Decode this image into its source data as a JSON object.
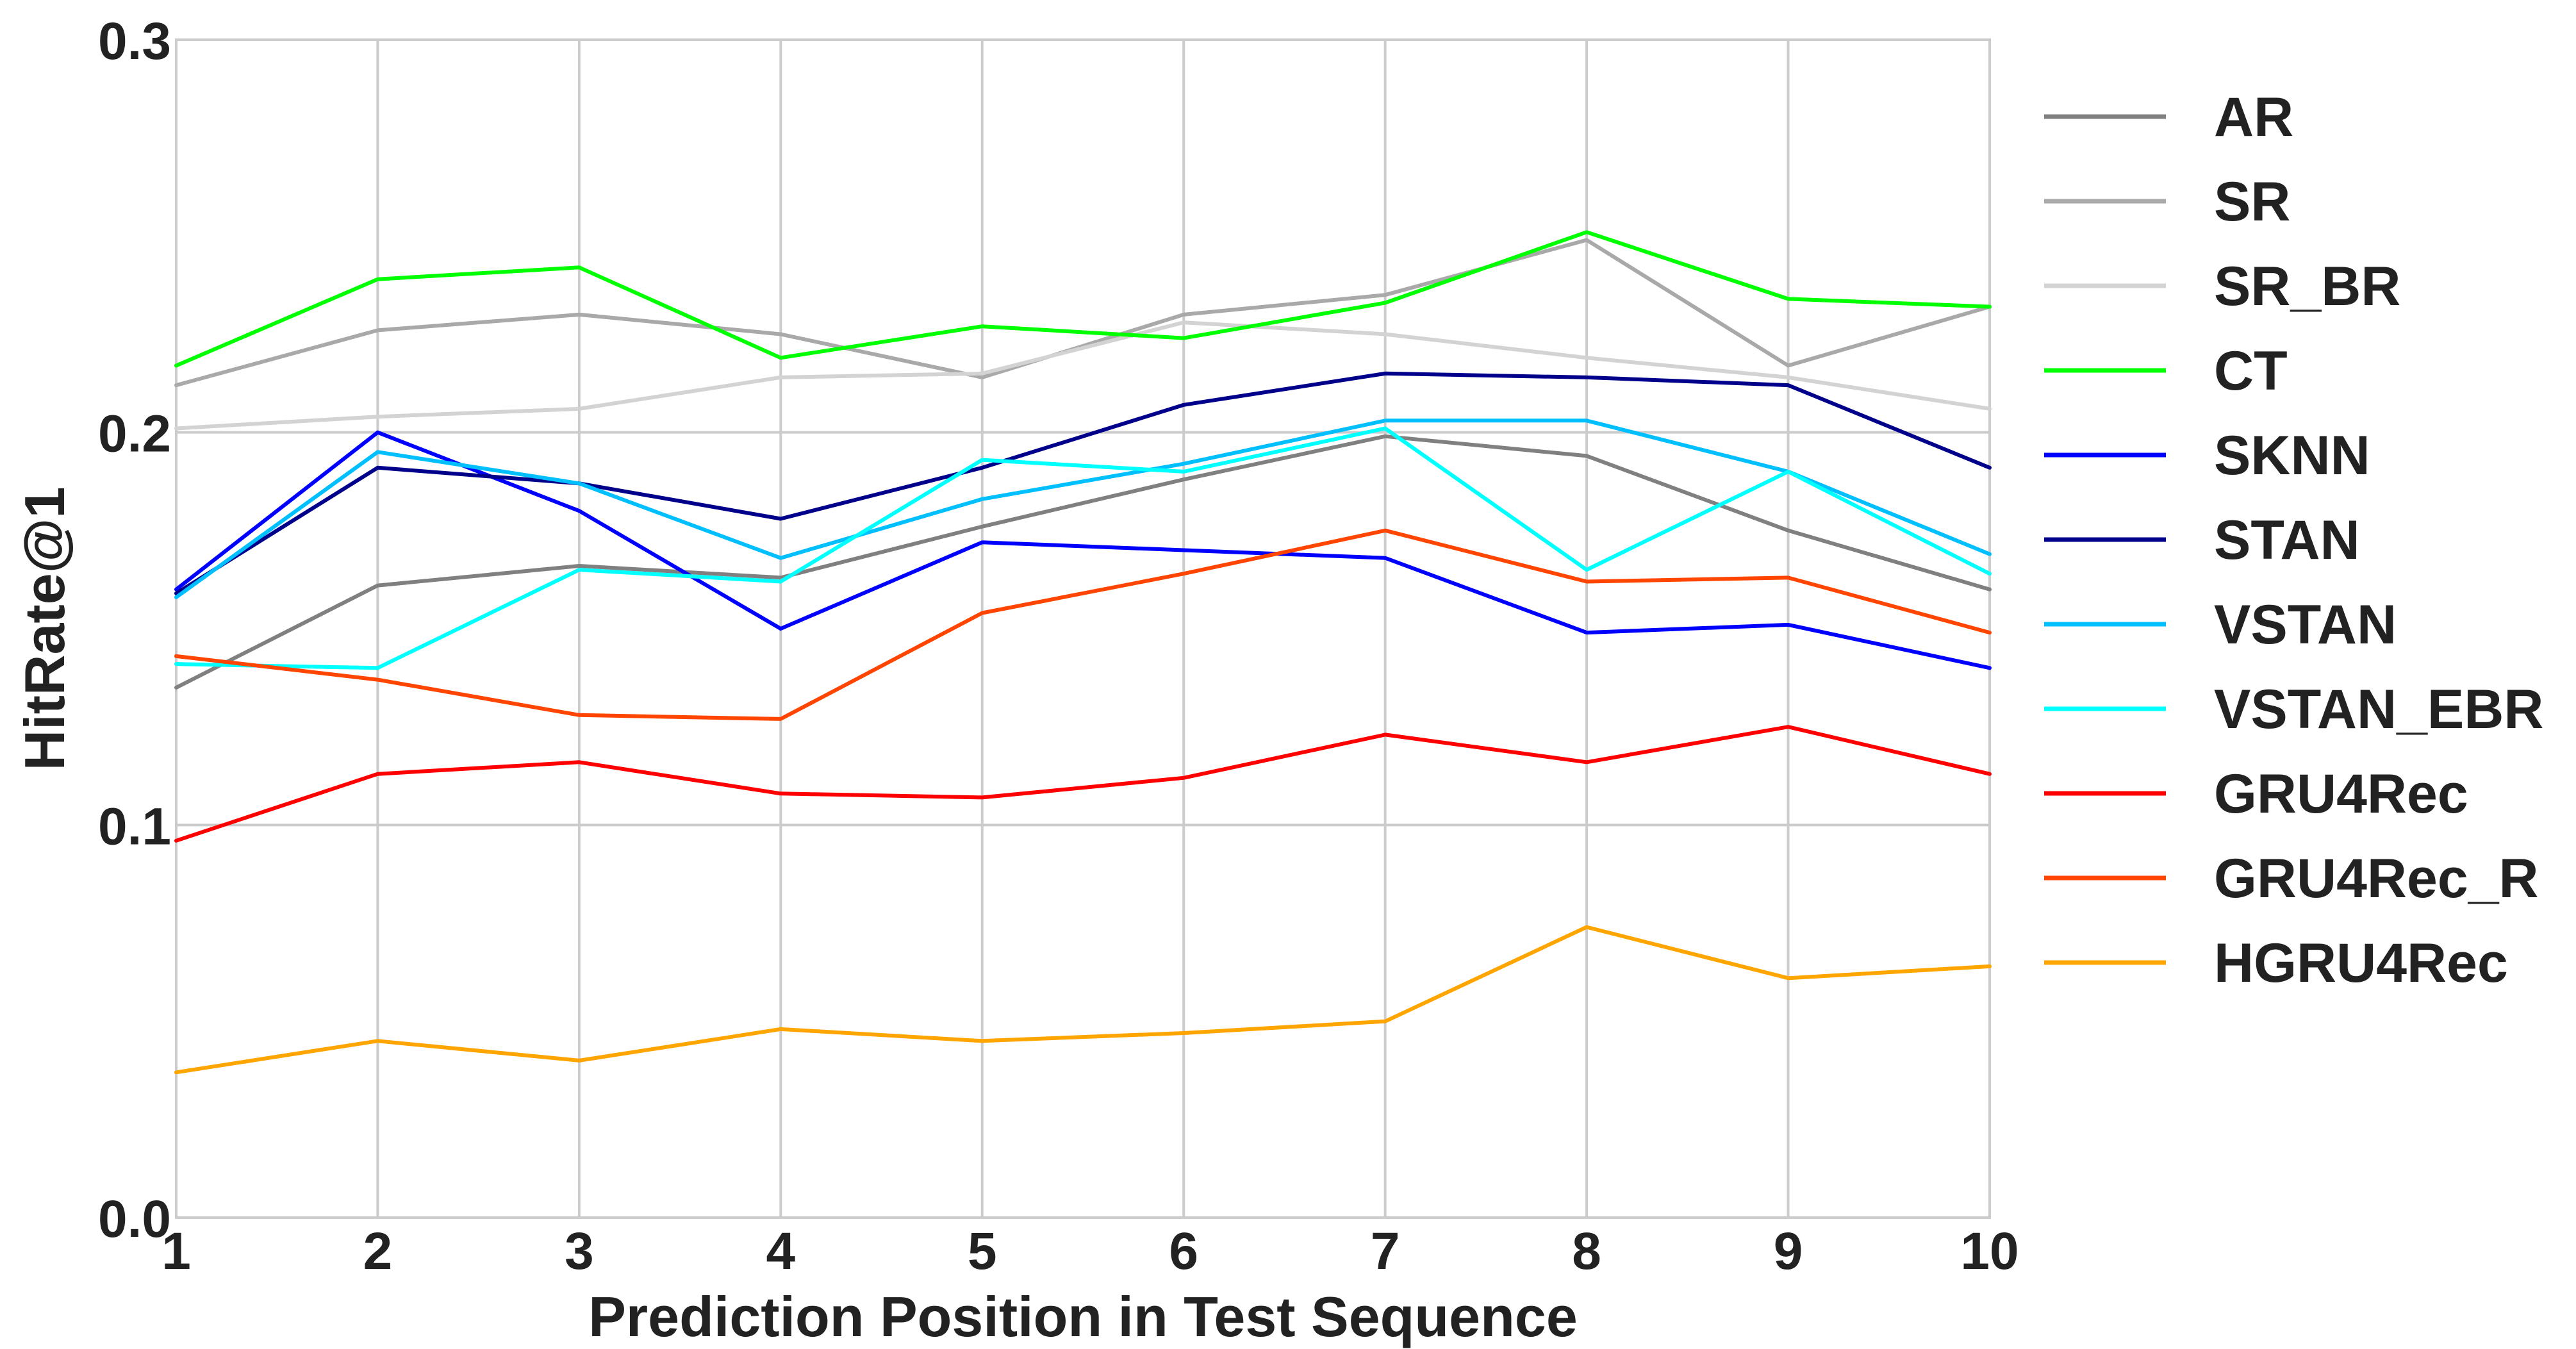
{
  "chart_data": {
    "type": "line",
    "title": "",
    "xlabel": "Prediction Position in Test Sequence",
    "ylabel": "HitRate@1",
    "x": [
      1,
      2,
      3,
      4,
      5,
      6,
      7,
      8,
      9,
      10
    ],
    "xlim": [
      1,
      10
    ],
    "ylim": [
      0.0,
      0.3
    ],
    "xticks": [
      "1",
      "2",
      "3",
      "4",
      "5",
      "6",
      "7",
      "8",
      "9",
      "10"
    ],
    "yticks": [
      "0.0",
      "0.1",
      "0.2",
      "0.3"
    ],
    "grid": true,
    "legend_position": "right",
    "series": [
      {
        "name": "AR",
        "color": "#808080",
        "values": [
          0.135,
          0.161,
          0.166,
          0.163,
          0.176,
          0.188,
          0.199,
          0.194,
          0.175,
          0.16
        ]
      },
      {
        "name": "SR",
        "color": "#a9a9a9",
        "values": [
          0.212,
          0.226,
          0.23,
          0.225,
          0.214,
          0.23,
          0.235,
          0.249,
          0.217,
          0.232
        ]
      },
      {
        "name": "SR_BR",
        "color": "#d3d3d3",
        "values": [
          0.201,
          0.204,
          0.206,
          0.214,
          0.215,
          0.228,
          0.225,
          0.219,
          0.214,
          0.206
        ]
      },
      {
        "name": "CT",
        "color": "#00ff00",
        "values": [
          0.217,
          0.239,
          0.242,
          0.219,
          0.227,
          0.224,
          0.233,
          0.251,
          0.234,
          0.232
        ]
      },
      {
        "name": "SKNN",
        "color": "#0000ff",
        "values": [
          0.16,
          0.2,
          0.18,
          0.15,
          0.172,
          0.17,
          0.168,
          0.149,
          0.151,
          0.14
        ]
      },
      {
        "name": "STAN",
        "color": "#00008b",
        "values": [
          0.159,
          0.191,
          0.187,
          0.178,
          0.191,
          0.207,
          0.215,
          0.214,
          0.212,
          0.191
        ]
      },
      {
        "name": "VSTAN",
        "color": "#00bfff",
        "values": [
          0.158,
          0.195,
          0.187,
          0.168,
          0.183,
          0.192,
          0.203,
          0.203,
          0.19,
          0.169
        ]
      },
      {
        "name": "VSTAN_EBR",
        "color": "#00ffff",
        "values": [
          0.141,
          0.14,
          0.165,
          0.162,
          0.193,
          0.19,
          0.201,
          0.165,
          0.19,
          0.164
        ]
      },
      {
        "name": "GRU4Rec",
        "color": "#ff0000",
        "values": [
          0.096,
          0.113,
          0.116,
          0.108,
          0.107,
          0.112,
          0.123,
          0.116,
          0.125,
          0.113
        ]
      },
      {
        "name": "GRU4Rec_R",
        "color": "#ff4500",
        "values": [
          0.143,
          0.137,
          0.128,
          0.127,
          0.154,
          0.164,
          0.175,
          0.162,
          0.163,
          0.149
        ]
      },
      {
        "name": "HGRU4Rec",
        "color": "#ffa500",
        "values": [
          0.037,
          0.045,
          0.04,
          0.048,
          0.045,
          0.047,
          0.05,
          0.074,
          0.061,
          0.064
        ]
      }
    ]
  }
}
